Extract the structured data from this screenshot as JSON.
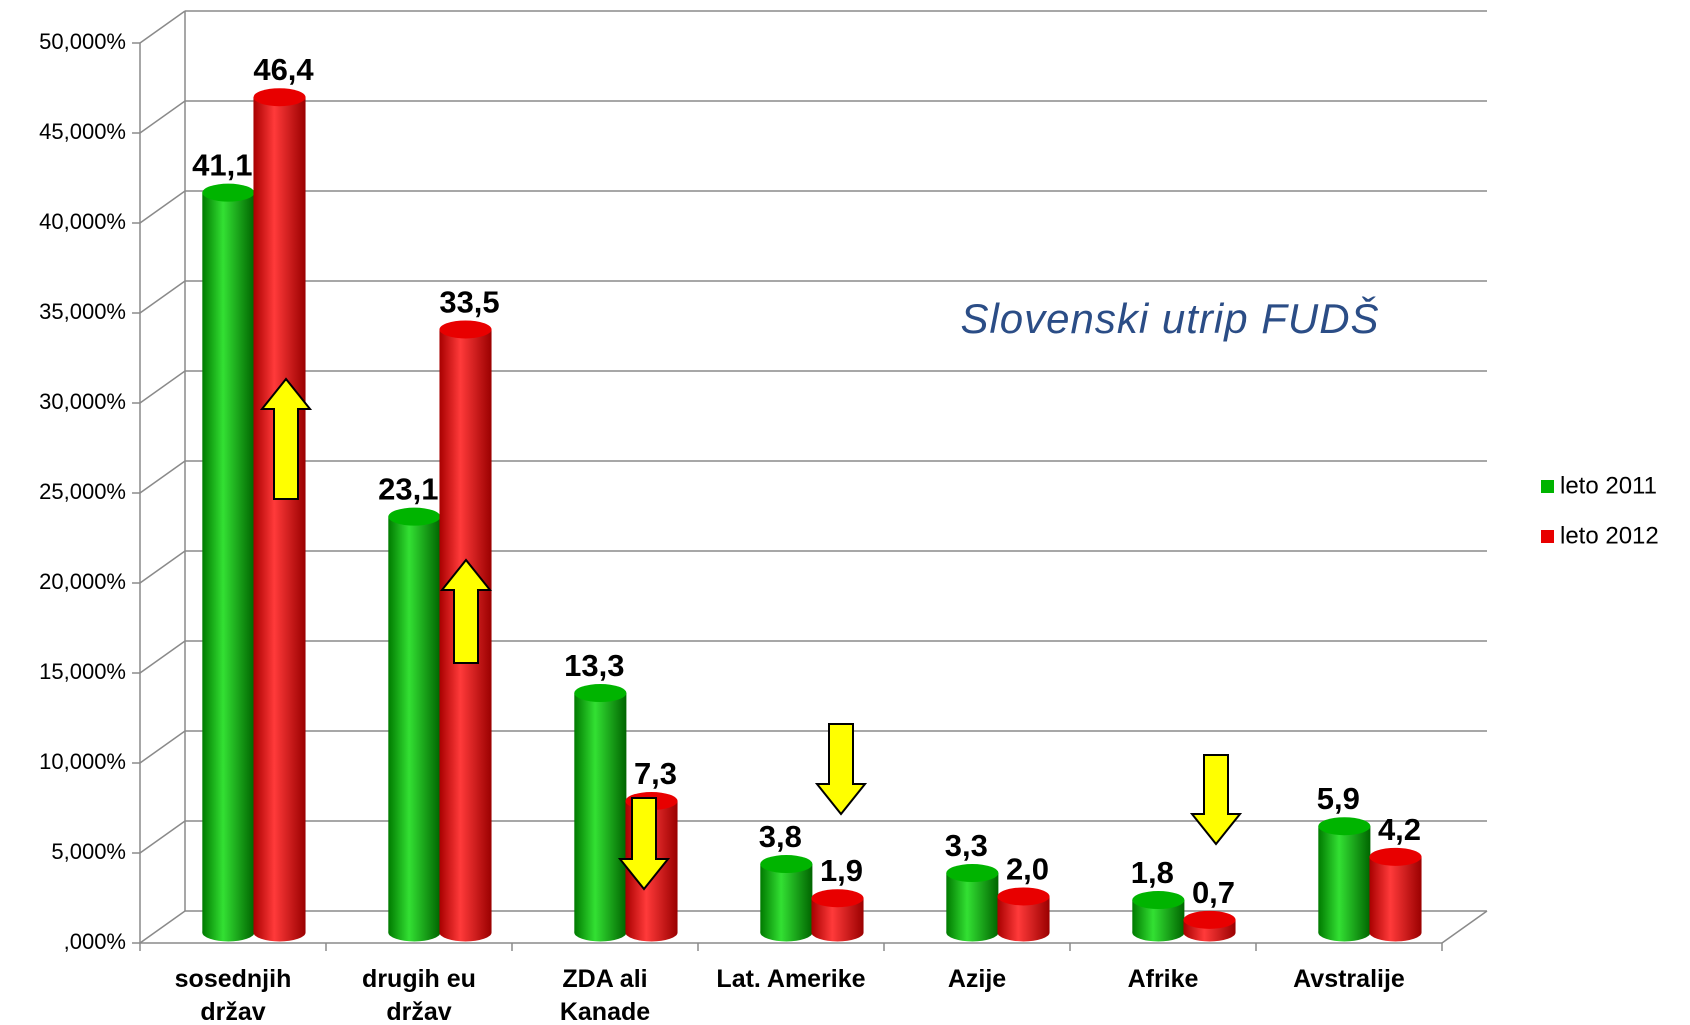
{
  "chart_data": {
    "type": "bar3d",
    "annotation": "Slovenski utrip FUDŠ",
    "categories": [
      "sosednjih držav",
      "drugih eu držav",
      "ZDA ali Kanade",
      "Lat. Amerike",
      "Azije",
      "Afrike",
      "Avstralije"
    ],
    "series": [
      {
        "name": "leto 2011",
        "color": "#00b400",
        "values": [
          41.1,
          23.1,
          13.3,
          3.8,
          3.3,
          1.8,
          5.9
        ],
        "value_labels": [
          "41,1",
          "23,1",
          "13,3",
          "3,8",
          "3,3",
          "1,8",
          "5,9"
        ]
      },
      {
        "name": "leto 2012",
        "color": "#e80000",
        "values": [
          46.4,
          33.5,
          7.3,
          1.9,
          2.0,
          0.7,
          4.2
        ],
        "value_labels": [
          "46,4",
          "33,5",
          "7,3",
          "1,9",
          "2,0",
          "0,7",
          "4,2"
        ]
      }
    ],
    "ylim": [
      0,
      50
    ],
    "yticks": [
      {
        "value": 0,
        "label": ",000%"
      },
      {
        "value": 5,
        "label": "5,000%"
      },
      {
        "value": 10,
        "label": "10,000%"
      },
      {
        "value": 15,
        "label": "15,000%"
      },
      {
        "value": 20,
        "label": "20,000%"
      },
      {
        "value": 25,
        "label": "25,000%"
      },
      {
        "value": 30,
        "label": "30,000%"
      },
      {
        "value": 35,
        "label": "35,000%"
      },
      {
        "value": 40,
        "label": "40,000%"
      },
      {
        "value": 45,
        "label": "45,000%"
      },
      {
        "value": 50,
        "label": "50,000%"
      }
    ],
    "grid": true,
    "legend": "right"
  }
}
